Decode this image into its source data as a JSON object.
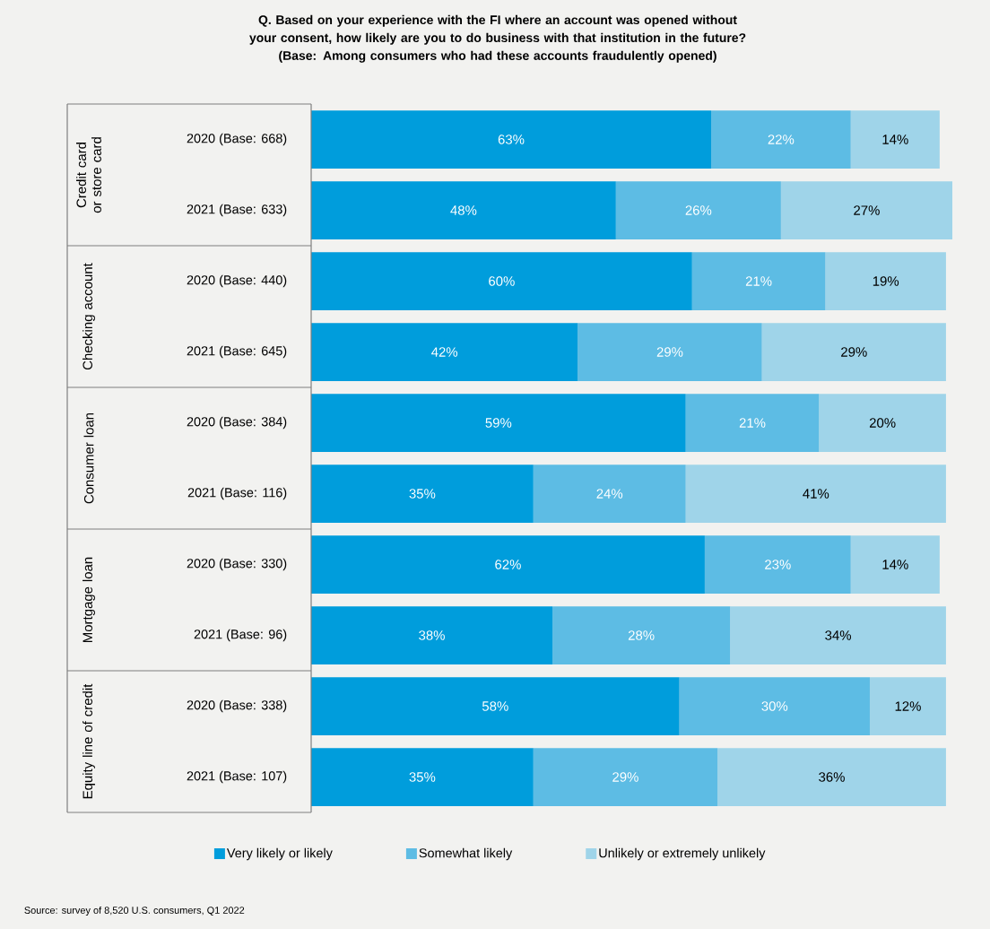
{
  "chart_data": {
    "type": "bar",
    "orientation": "horizontal",
    "stacked": true,
    "title": "Q. Based on your experience with the FI where an account was opened without your consent, how likely are you to do business with that institution in the future?",
    "subtitle": "(Base: Among consumers who had these accounts fraudulently opened)",
    "categories": [
      "2020 (Base: 668)",
      "2021 (Base: 633)",
      "2020 (Base: 440)",
      "2021 (Base: 645)",
      "2020 (Base: 384)",
      "2021 (Base: 116)",
      "2020 (Base: 330)",
      "2021 (Base: 96)",
      "2020 (Base: 338)",
      "2021 (Base: 107)"
    ],
    "series": [
      {
        "name": "Very likely or likely",
        "color": "#009ddc",
        "values": [
          63,
          48,
          60,
          42,
          59,
          35,
          62,
          38,
          58,
          35
        ],
        "value_labels": [
          "63%",
          "48%",
          "60%",
          "42%",
          "59%",
          "35%",
          "62%",
          "38%",
          "58%",
          "35%"
        ]
      },
      {
        "name": "Somewhat likely",
        "color": "#5dbce4",
        "values": [
          22,
          26,
          21,
          29,
          21,
          24,
          23,
          28,
          30,
          29
        ],
        "value_labels": [
          "22%",
          "26%",
          "21%",
          "29%",
          "21%",
          "24%",
          "23%",
          "28%",
          "30%",
          "29%"
        ]
      },
      {
        "name": "Unlikely or extremely unlikely",
        "color": "#9fd4e9",
        "values": [
          14,
          27,
          19,
          29,
          20,
          41,
          14,
          34,
          12,
          36
        ],
        "value_labels": [
          "14%",
          "27%",
          "19%",
          "29%",
          "20%",
          "41%",
          "14%",
          "34%",
          "12%",
          "36%"
        ]
      }
    ],
    "xlim": [
      0,
      101
    ],
    "tick_labels": "y",
    "legend": "bottom",
    "annotations": [
      "Credit card or store card",
      "Checking account",
      "Consumer loan",
      "Mortgage loan",
      "Equity line of credit",
      "Source: survey of 8,520 U.S. consumers, Q1 2022"
    ]
  }
}
